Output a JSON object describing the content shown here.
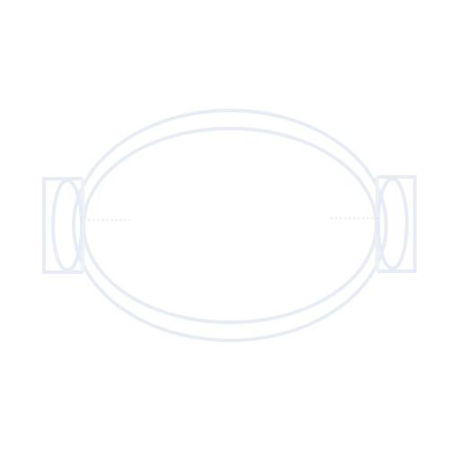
{
  "drawing": {
    "icon": "oval-dish-with-side-handles-icon",
    "colors": {
      "background": "#ffffff",
      "stroke": "#e8edf5",
      "stroke_light": "#eef2f8",
      "accent_line": "#d6e0f0"
    }
  }
}
